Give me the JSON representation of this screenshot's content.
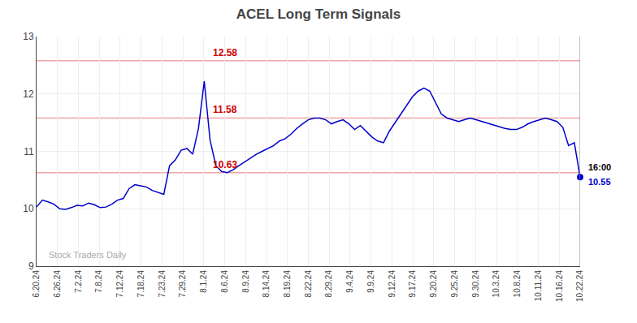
{
  "chart_data": {
    "type": "line",
    "title": "ACEL Long Term Signals",
    "watermark": "Stock Traders Daily",
    "x": [
      0,
      0.2766,
      0.5532,
      0.8298,
      1.1064,
      1.383,
      1.6596,
      1.9362,
      2.2128,
      2.4894,
      2.766,
      3.0426,
      3.3191,
      3.5957,
      3.8723,
      4.1489,
      4.4255,
      4.7021,
      4.9787,
      5.2553,
      5.5319,
      5.8085,
      6.0851,
      6.3617,
      6.6383,
      6.9149,
      7.1915,
      7.4681,
      7.7447,
      8.0213,
      8.2979,
      8.5745,
      8.8511,
      9.1277,
      9.4043,
      9.6809,
      9.9574,
      10.234,
      10.5106,
      10.7872,
      11.0638,
      11.3404,
      11.617,
      11.8936,
      12.1702,
      12.4468,
      12.7234,
      13,
      13.2766,
      13.5532,
      13.8298,
      14.1064,
      14.383,
      14.6596,
      14.9362,
      15.2128,
      15.4894,
      15.766,
      16.0426,
      16.3191,
      16.5957,
      16.8723,
      17.1489,
      17.4255,
      17.7021,
      17.9787,
      18.2553,
      18.5319,
      18.8085,
      19.0851,
      19.3617,
      19.6383,
      19.9149,
      20.1915,
      20.4681,
      20.7447,
      21.0213,
      21.2979,
      21.5745,
      21.8511,
      22.1277,
      22.4043,
      22.6809,
      22.9574,
      23.234,
      23.5106,
      23.7872,
      24.0638,
      24.3404,
      24.617,
      24.8936,
      25.1702,
      25.4468,
      25.7234,
      26
    ],
    "series": [
      {
        "color": "#0000cc",
        "values": [
          10.03,
          10.15,
          10.12,
          10.08,
          10.0,
          9.99,
          10.02,
          10.06,
          10.05,
          10.1,
          10.07,
          10.02,
          10.03,
          10.08,
          10.15,
          10.18,
          10.35,
          10.42,
          10.4,
          10.38,
          10.32,
          10.28,
          10.25,
          10.75,
          10.85,
          11.02,
          11.05,
          10.95,
          11.4,
          12.22,
          11.2,
          10.75,
          10.65,
          10.63,
          10.68,
          10.75,
          10.82,
          10.88,
          10.95,
          11.0,
          11.05,
          11.1,
          11.18,
          11.22,
          11.3,
          11.4,
          11.48,
          11.55,
          11.58,
          11.58,
          11.55,
          11.48,
          11.52,
          11.55,
          11.48,
          11.38,
          11.45,
          11.35,
          11.25,
          11.18,
          11.15,
          11.35,
          11.5,
          11.65,
          11.8,
          11.95,
          12.05,
          12.1,
          12.05,
          11.85,
          11.65,
          11.58,
          11.55,
          11.52,
          11.55,
          11.58,
          11.55,
          11.52,
          11.48,
          11.45,
          11.42,
          11.4,
          11.38,
          11.38,
          11.42,
          11.48,
          11.52,
          11.55,
          11.58,
          11.55,
          11.52,
          11.42,
          11.1,
          11.15,
          10.55
        ]
      }
    ],
    "xlim": [
      0,
      26
    ],
    "xticks": [
      {
        "value": 0,
        "label": "6.20.24"
      },
      {
        "value": 1,
        "label": "6.26.24"
      },
      {
        "value": 2,
        "label": "7.2.24"
      },
      {
        "value": 3,
        "label": "7.8.24"
      },
      {
        "value": 4,
        "label": "7.12.24"
      },
      {
        "value": 5,
        "label": "7.18.24"
      },
      {
        "value": 6,
        "label": "7.23.24"
      },
      {
        "value": 7,
        "label": "7.29.24"
      },
      {
        "value": 8,
        "label": "8.1.24"
      },
      {
        "value": 9,
        "label": "8.6.24"
      },
      {
        "value": 10,
        "label": "8.9.24"
      },
      {
        "value": 11,
        "label": "8.14.24"
      },
      {
        "value": 12,
        "label": "8.19.24"
      },
      {
        "value": 13,
        "label": "8.22.24"
      },
      {
        "value": 14,
        "label": "8.29.24"
      },
      {
        "value": 15,
        "label": "9.4.24"
      },
      {
        "value": 16,
        "label": "9.9.24"
      },
      {
        "value": 17,
        "label": "9.12.24"
      },
      {
        "value": 18,
        "label": "9.17.24"
      },
      {
        "value": 19,
        "label": "9.20.24"
      },
      {
        "value": 20,
        "label": "9.25.24"
      },
      {
        "value": 21,
        "label": "9.30.24"
      },
      {
        "value": 22,
        "label": "10.3.24"
      },
      {
        "value": 23,
        "label": "10.8.24"
      },
      {
        "value": 24,
        "label": "10.11.24"
      },
      {
        "value": 25,
        "label": "10.16.24"
      },
      {
        "value": 26,
        "label": "10.22.24"
      }
    ],
    "ylim": [
      9,
      13
    ],
    "yticks": [
      9,
      10,
      11,
      12,
      13
    ],
    "grid": true,
    "hlines": [
      {
        "value": 12.58,
        "label": "12.58",
        "x": 9,
        "color": "#cc0000"
      },
      {
        "value": 11.58,
        "label": "11.58",
        "x": 9,
        "color": "#cc0000"
      },
      {
        "value": 10.63,
        "label": "10.63",
        "x": 9,
        "color": "#cc0000"
      }
    ],
    "last_point": {
      "x": 26,
      "y": 10.55,
      "time": "16:00",
      "label": "10.55",
      "color": "#0000cc"
    }
  }
}
